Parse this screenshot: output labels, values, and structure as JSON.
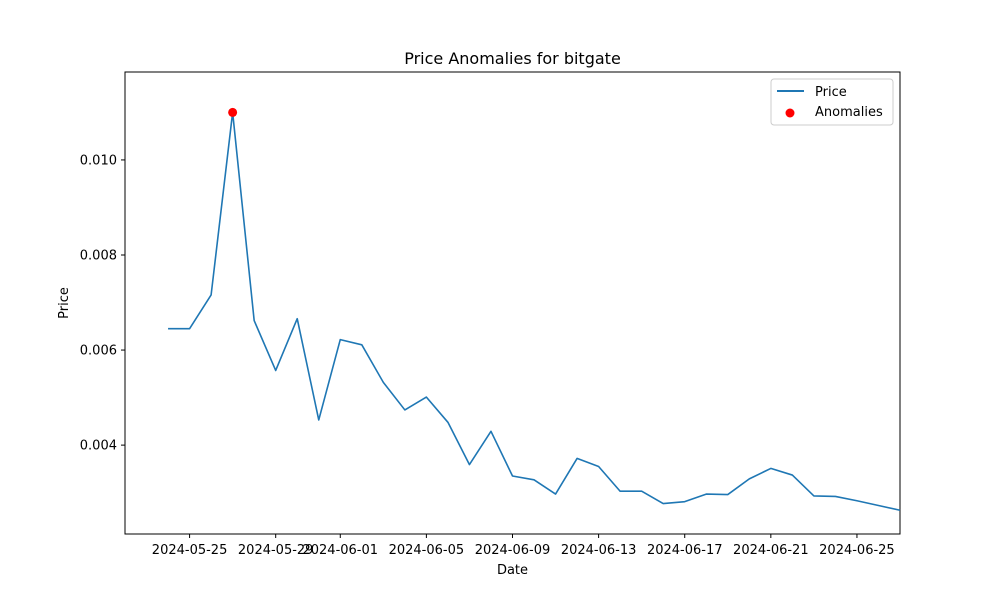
{
  "chart_data": {
    "type": "line",
    "title": "Price Anomalies for bitgate",
    "xlabel": "Date",
    "ylabel": "Price",
    "xlim": [
      "2024-05-22",
      "2024-06-27"
    ],
    "ylim": [
      0.00213,
      0.01185
    ],
    "x_ticks": [
      "2024-05-25",
      "2024-05-29",
      "2024-06-01",
      "2024-06-05",
      "2024-06-09",
      "2024-06-13",
      "2024-06-17",
      "2024-06-21",
      "2024-06-25"
    ],
    "y_ticks": [
      "0.004",
      "0.006",
      "0.008",
      "0.010"
    ],
    "grid": false,
    "legend_position": "upper right",
    "series": [
      {
        "name": "Price",
        "color": "#1f77b4",
        "x": [
          "2024-05-24",
          "2024-05-25",
          "2024-05-26",
          "2024-05-27",
          "2024-05-28",
          "2024-05-29",
          "2024-05-30",
          "2024-05-31",
          "2024-06-01",
          "2024-06-02",
          "2024-06-03",
          "2024-06-04",
          "2024-06-05",
          "2024-06-06",
          "2024-06-07",
          "2024-06-08",
          "2024-06-09",
          "2024-06-10",
          "2024-06-11",
          "2024-06-12",
          "2024-06-13",
          "2024-06-14",
          "2024-06-15",
          "2024-06-16",
          "2024-06-17",
          "2024-06-18",
          "2024-06-19",
          "2024-06-20",
          "2024-06-21",
          "2024-06-22",
          "2024-06-23",
          "2024-06-24",
          "2024-06-25",
          "2024-06-26",
          "2024-06-27"
        ],
        "y": [
          0.00645,
          0.00645,
          0.00716,
          0.011,
          0.00662,
          0.00557,
          0.00666,
          0.00453,
          0.00622,
          0.00611,
          0.00532,
          0.00474,
          0.00501,
          0.00448,
          0.00359,
          0.00429,
          0.00335,
          0.00327,
          0.00297,
          0.00372,
          0.00355,
          0.00303,
          0.00303,
          0.00277,
          0.00281,
          0.00297,
          0.00296,
          0.00329,
          0.00351,
          0.00337,
          0.00293,
          0.00292,
          0.00283,
          0.00273,
          0.00263
        ]
      },
      {
        "name": "Anomalies",
        "type": "scatter",
        "color": "#ff0000",
        "x": [
          "2024-05-27"
        ],
        "y": [
          0.011
        ]
      }
    ]
  }
}
